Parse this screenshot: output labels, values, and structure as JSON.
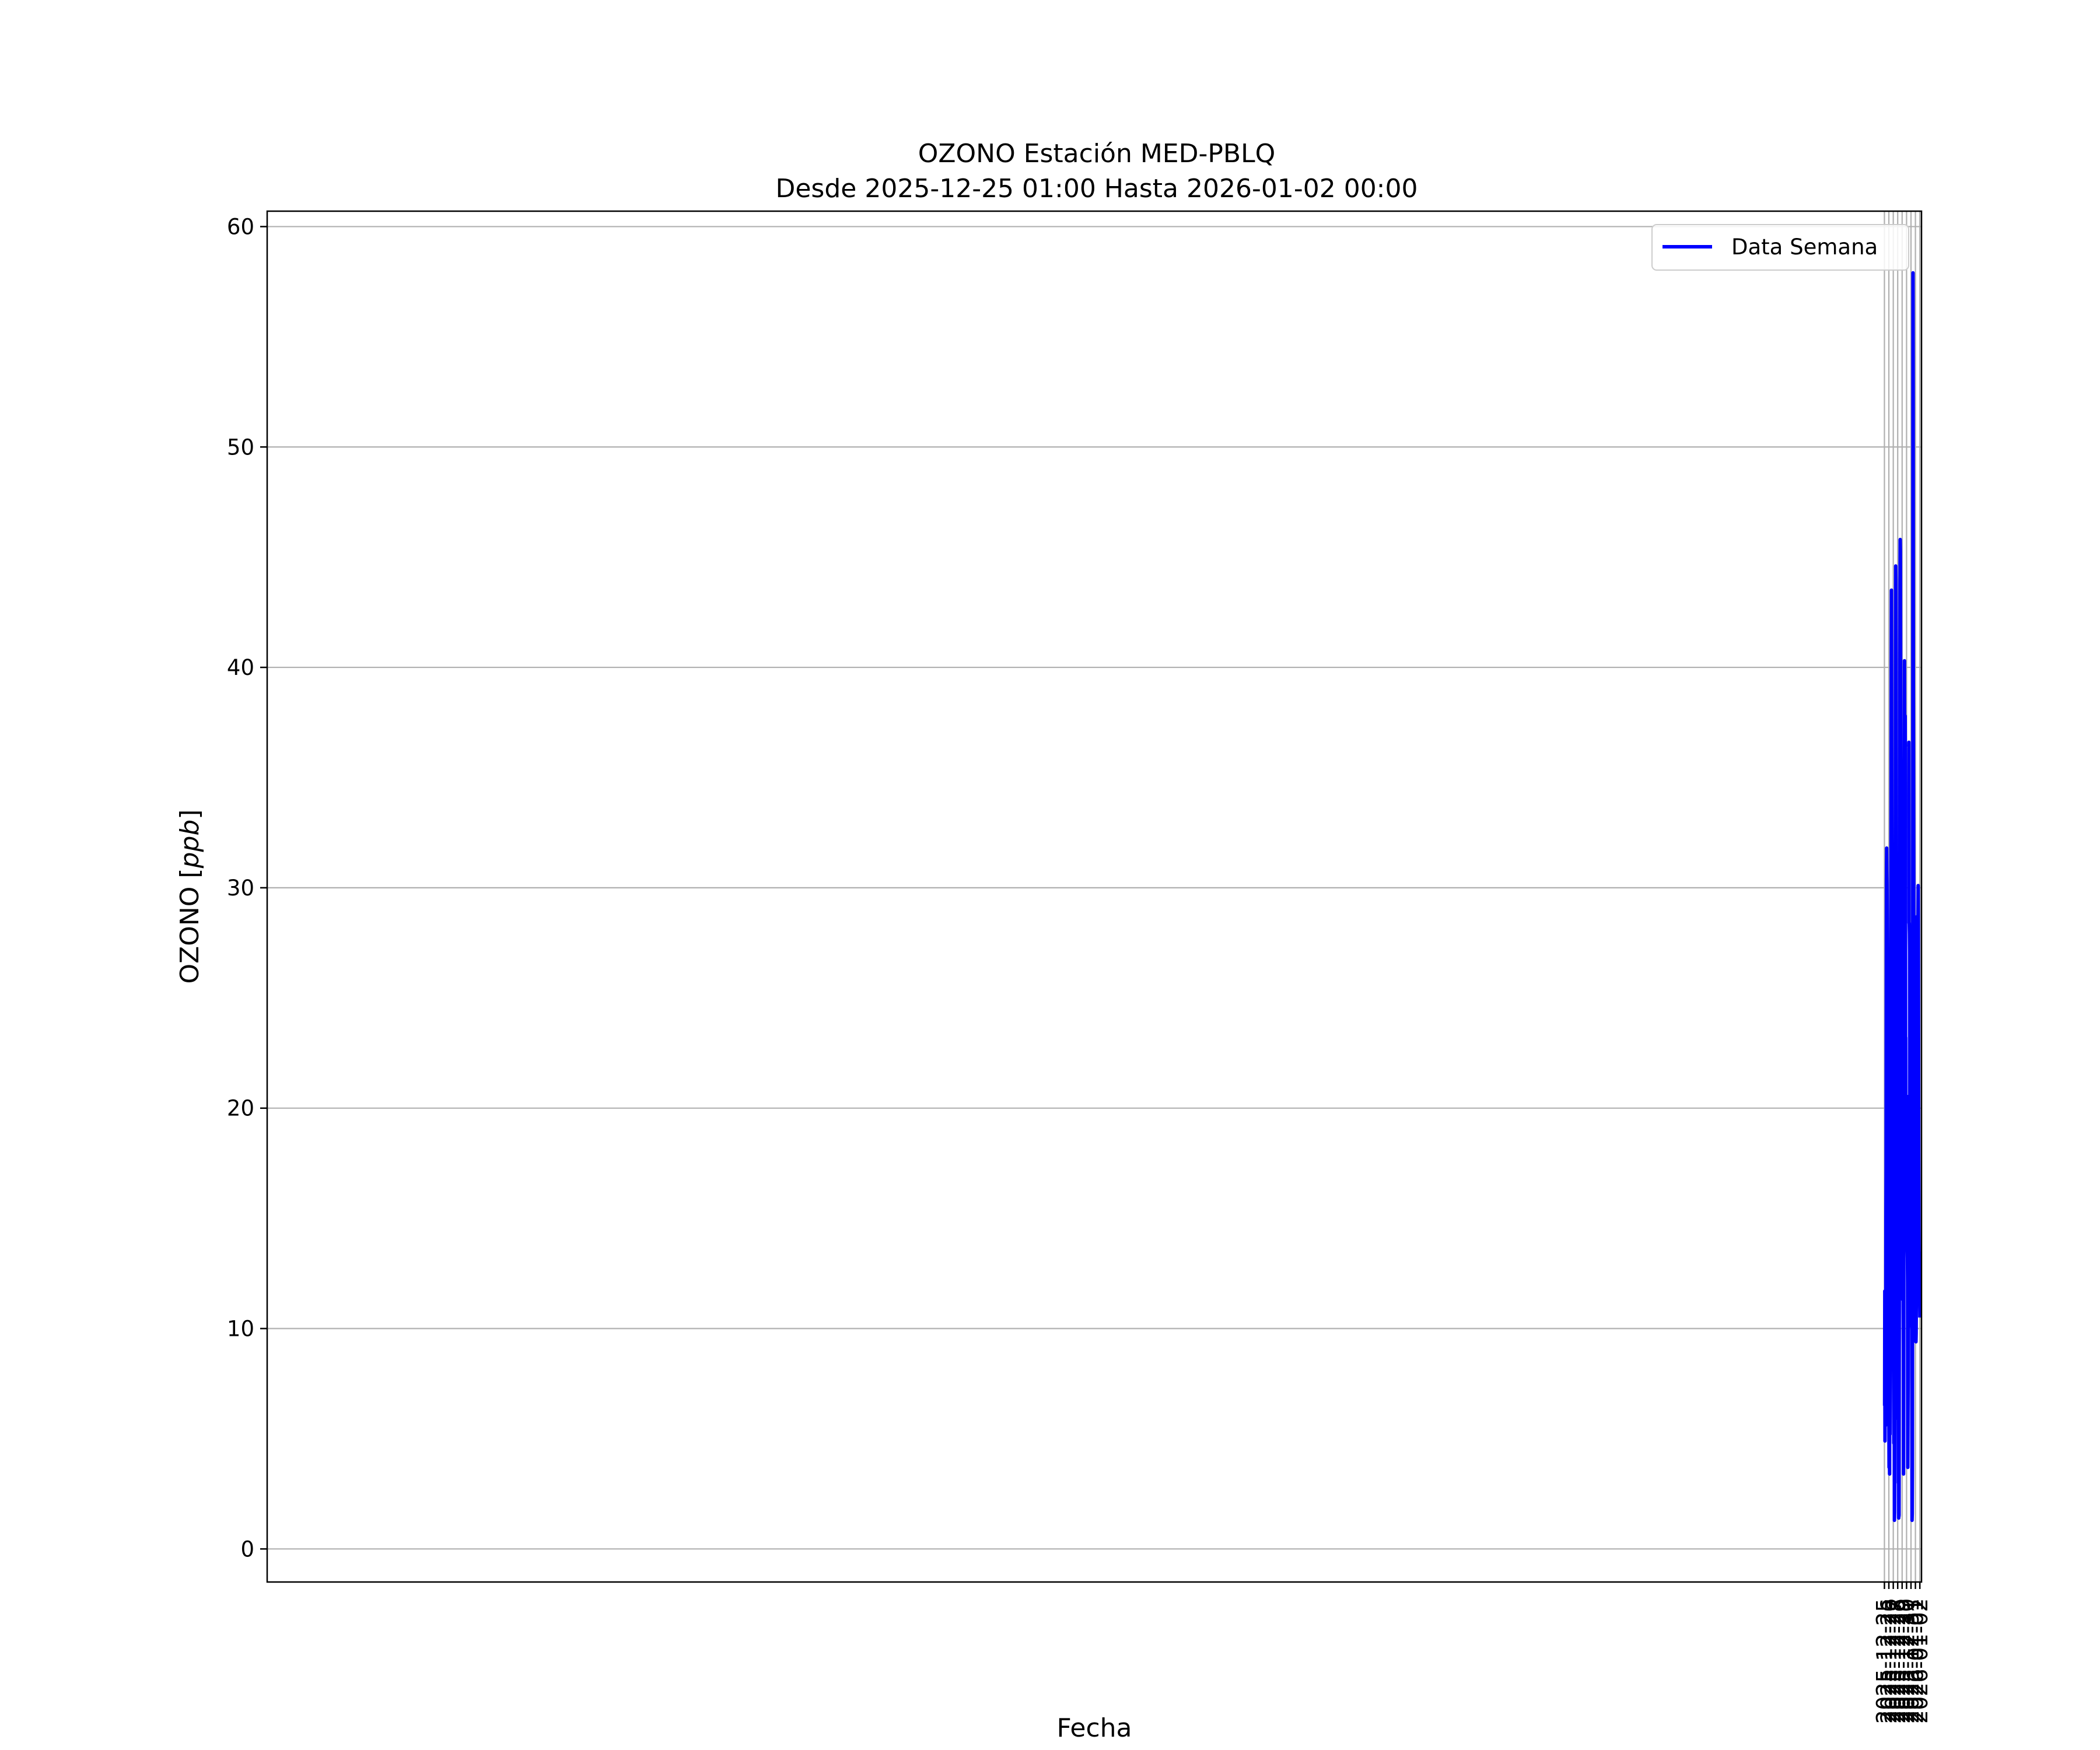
{
  "chart_data": {
    "type": "line",
    "title_line1": "OZONO Estación MED-PBLQ",
    "title_line2": "Desde 2025-12-25 01:00 Hasta 2026-01-02 00:00",
    "xlabel": "Fecha",
    "ylabel_text": "OZONO ",
    "ylabel_unit": "ppb",
    "x_start": "2025-12-25 01:00",
    "x_end": "2026-01-02 00:00",
    "xlim": [
      "2024-12-24 16:48",
      "2026-01-02 09:00"
    ],
    "ylim": [
      -1.5,
      60.7
    ],
    "yticks": [
      0,
      10,
      20,
      30,
      40,
      50,
      60
    ],
    "xtick_labels": [
      "2025-12-25",
      "2025-12-26",
      "2025-12-27",
      "2025-12-28",
      "2025-12-29",
      "2025-12-30",
      "2025-12-31",
      "2026-01-01",
      "2026-01-02"
    ],
    "grid": true,
    "legend_position": "top-right",
    "series": [
      {
        "name": "Data Semana",
        "color": "#0000ff",
        "values": [
          [
            6.5,
            11.7,
            4.9,
            7.4,
            9.0,
            5.6,
            10.0,
            15.0,
            17.3,
            24.4,
            30.2,
            31.8,
            30.8,
            30.2,
            28.7,
            26.4,
            23.0,
            19.3,
            17.0,
            15.0,
            13.9,
            7.3,
            7.7,
            6.1,
            3.7,
            6.8,
            4.2,
            3.4,
            11.1,
            5.2,
            8.3,
            10.6,
            19.3,
            25.3,
            29.4,
            33.8,
            39.8,
            43.5,
            37.9,
            28.8,
            25.7,
            19.7,
            16.4,
            9.9,
            11.7,
            9.1,
            13.1,
            10.5,
            11.7,
            7.9,
            4.8,
            5.8,
            5.8,
            1.3,
            1.7,
            9.0,
            14.2,
            29.4,
            34.0,
            40.4,
            44.6,
            44.0,
            40.4,
            31.6,
            27.6,
            21.2,
            16.6,
            13.0,
            13.8,
            12.6,
            11.4,
            10.2,
            5.9,
            10.1,
            3.0,
            3.5,
            1.4,
            1.9,
            1.5,
            11.0,
            18.8,
            24.6,
            31.2,
            43.7,
            45.8,
            45.3,
            41.6,
            38.1,
            35.2,
            27.6,
            22.7,
            21.5,
            20.8,
            19.0,
            17.1,
            14.5,
            18.4,
            13.0,
            11.3,
            16.1,
            11.0,
            9.2,
            3.4,
            8.2,
            16.4,
            22.9,
            31.6,
            40.3,
            37.0,
            35.4,
            33.8,
            37.8,
            34.2,
            22.4,
            23.2,
            18.6,
            17.0,
            17.1,
            16.7,
            16.2,
            16.5,
            17.9,
            13.8,
            13.2,
            12.1,
            3.7,
            5.8,
            7.8,
            12.4,
            20.6
          ],
          [
            36.4,
            36.6,
            28.4,
            28.4,
            27.9,
            27.1,
            17.8,
            16.4,
            14.5,
            16.1,
            13.8,
            12.1,
            12.2,
            10.1,
            17.2,
            21.8,
            15.7,
            7.2,
            1.3,
            1.6,
            3.6,
            16.3,
            29.7,
            57.9,
            52.3,
            39.3,
            36.2,
            30.9,
            26.9,
            28.5,
            22.3,
            17.3,
            18.2,
            15.9,
            17.6,
            15.0,
            14.5,
            10.2,
            12.9,
            9.4,
            9.8,
            11.6,
            15.5,
            13.5,
            13.3,
            21.9,
            28.7,
            27.1,
            28.2,
            27.7,
            28.6,
            30.1,
            28.3,
            23.1,
            18.0,
            14.6,
            13.5,
            13.4,
            12.5,
            11.6,
            10.5
          ]
        ]
      }
    ]
  }
}
